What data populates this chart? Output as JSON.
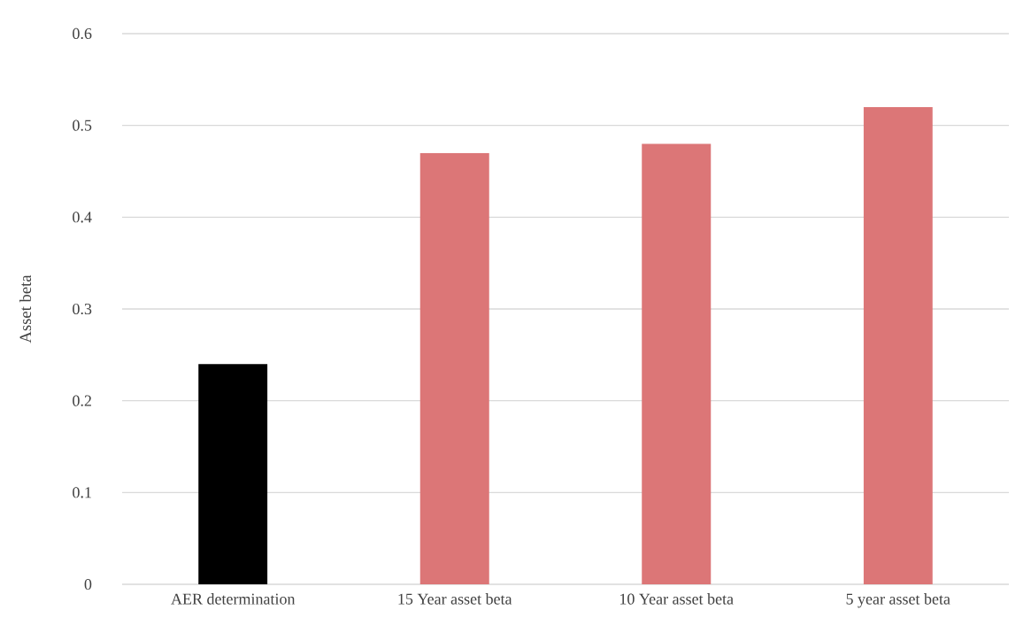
{
  "chart_data": {
    "type": "bar",
    "ylabel": "Asset beta",
    "categories": [
      "AER determination",
      "15 Year asset beta",
      "10 Year asset beta",
      "5 year asset beta"
    ],
    "values": [
      0.24,
      0.47,
      0.48,
      0.52
    ],
    "colors": [
      "#000000",
      "#dc7677",
      "#dc7677",
      "#dc7677"
    ],
    "ylim": [
      0,
      0.6
    ],
    "yticks": [
      {
        "value": 0,
        "label": "0"
      },
      {
        "value": 0.1,
        "label": "0.1"
      },
      {
        "value": 0.2,
        "label": "0.2"
      },
      {
        "value": 0.3,
        "label": "0.3"
      },
      {
        "value": 0.4,
        "label": "0.4"
      },
      {
        "value": 0.5,
        "label": "0.5"
      },
      {
        "value": 0.6,
        "label": "0.6"
      }
    ],
    "grid": "y"
  }
}
